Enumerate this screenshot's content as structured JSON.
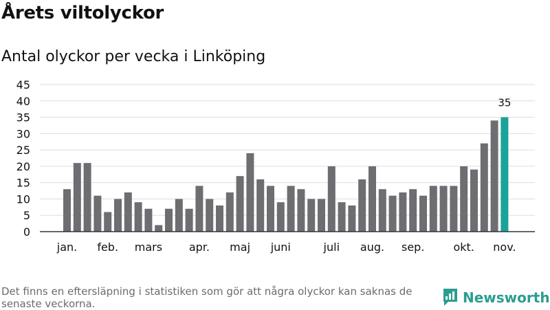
{
  "title": "Årets viltolyckor",
  "subtitle": "Antal olyckor per vecka i Linköping",
  "footnote": "Det finns en eftersläpning i statistiken som gör att några olyckor kan saknas de senaste veckorna.",
  "brand": {
    "name": "Newsworthy",
    "icon": "bar-chart-logo-icon"
  },
  "colors": {
    "bar": "#6e6d72",
    "highlight": "#1aa39a",
    "grid": "#dddddd",
    "axis": "#333333"
  },
  "chart_data": {
    "type": "bar",
    "title": "Antal olyckor per vecka i Linköping",
    "xlabel": "",
    "ylabel": "",
    "ylim": [
      0,
      45
    ],
    "yticks": [
      0,
      5,
      10,
      15,
      20,
      25,
      30,
      35,
      40,
      45
    ],
    "grid": true,
    "values": [
      13,
      21,
      21,
      11,
      6,
      10,
      12,
      9,
      7,
      2,
      7,
      10,
      7,
      14,
      10,
      8,
      12,
      17,
      24,
      16,
      14,
      9,
      14,
      13,
      10,
      10,
      20,
      9,
      8,
      16,
      20,
      13,
      11,
      12,
      13,
      11,
      14,
      14,
      14,
      20,
      19,
      27,
      34,
      35
    ],
    "highlight_index": 43,
    "highlight_label": "35",
    "month_labels": [
      {
        "label": "jan.",
        "week": 1
      },
      {
        "label": "feb.",
        "week": 5
      },
      {
        "label": "mars",
        "week": 9
      },
      {
        "label": "apr.",
        "week": 14
      },
      {
        "label": "maj",
        "week": 18
      },
      {
        "label": "juni",
        "week": 22
      },
      {
        "label": "juli",
        "week": 27
      },
      {
        "label": "aug.",
        "week": 31
      },
      {
        "label": "sep.",
        "week": 35
      },
      {
        "label": "okt.",
        "week": 40
      },
      {
        "label": "nov.",
        "week": 44
      }
    ]
  }
}
